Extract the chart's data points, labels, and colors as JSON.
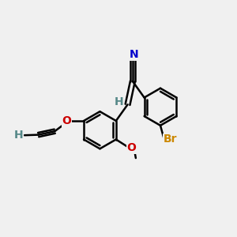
{
  "bg_color": "#f0f0f0",
  "bond_color": "#000000",
  "bond_width": 1.8,
  "atom_colors": {
    "N": "#0000cc",
    "O": "#cc0000",
    "Br": "#cc8800",
    "H": "#558888",
    "C": "#000000"
  },
  "font_size": 10,
  "fig_size": [
    3.0,
    3.0
  ],
  "dpi": 100
}
